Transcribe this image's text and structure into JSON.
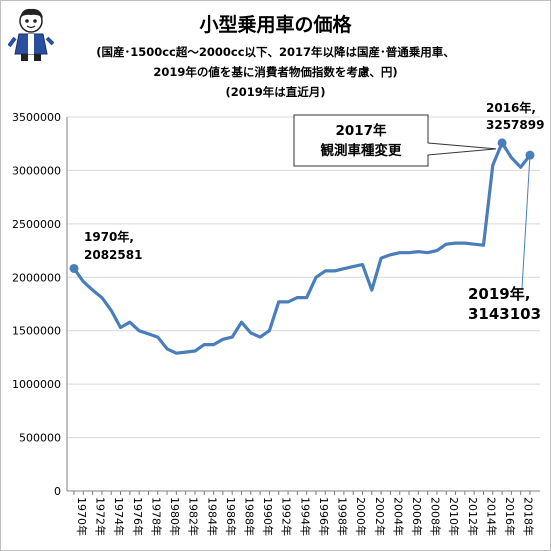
{
  "chart_data": {
    "type": "line",
    "title": "小型乗用車の価格",
    "subtitle_lines": [
      "(国産･1500cc超～2000cc以下、2017年以降は国産･普通乗用車、",
      "2019年の値を基に消費者物価指数を考慮、円)",
      "(2019年は直近月)"
    ],
    "ylim": [
      0,
      3500000
    ],
    "yticks": [
      0,
      500000,
      1000000,
      1500000,
      2000000,
      2500000,
      3000000,
      3500000
    ],
    "ytick_labels": [
      "0",
      "500000",
      "1000000",
      "1500000",
      "2000000",
      "2500000",
      "3000000",
      "3500000"
    ],
    "xtick_labels": [
      "1970年",
      "1972年",
      "1974年",
      "1976年",
      "1978年",
      "1980年",
      "1982年",
      "1984年",
      "1986年",
      "1988年",
      "1990年",
      "1992年",
      "1994年",
      "1996年",
      "1998年",
      "2000年",
      "2002年",
      "2004年",
      "2006年",
      "2008年",
      "2010年",
      "2012年",
      "2014年",
      "2016年",
      "2018年"
    ],
    "x": [
      1970,
      1971,
      1972,
      1973,
      1974,
      1975,
      1976,
      1977,
      1978,
      1979,
      1980,
      1981,
      1982,
      1983,
      1984,
      1985,
      1986,
      1987,
      1988,
      1989,
      1990,
      1991,
      1992,
      1993,
      1994,
      1995,
      1996,
      1997,
      1998,
      1999,
      2000,
      2001,
      2002,
      2003,
      2004,
      2005,
      2006,
      2007,
      2008,
      2009,
      2010,
      2011,
      2012,
      2013,
      2014,
      2015,
      2016,
      2017,
      2018,
      2019
    ],
    "series": [
      {
        "values": [
          2082581,
          1960000,
          1880000,
          1810000,
          1690000,
          1530000,
          1580000,
          1500000,
          1470000,
          1440000,
          1330000,
          1290000,
          1300000,
          1310000,
          1370000,
          1370000,
          1420000,
          1440000,
          1580000,
          1480000,
          1440000,
          1500000,
          1770000,
          1770000,
          1810000,
          1810000,
          2000000,
          2060000,
          2060000,
          2080000,
          2100000,
          2120000,
          1880000,
          2180000,
          2210000,
          2230000,
          2230000,
          2240000,
          2230000,
          2250000,
          2310000,
          2320000,
          2320000,
          2310000,
          2300000,
          3050000,
          3257899,
          3120000,
          3030000,
          3143103
        ],
        "color": "#4a7ebb"
      }
    ],
    "annotations": [
      {
        "line1": "1970年,",
        "line2": "2082581",
        "x": 1970,
        "y": 2082581
      },
      {
        "line1": "2016年,",
        "line2": "3257899",
        "x": 2016,
        "y": 3257899
      },
      {
        "line1": "2019年,",
        "line2": "3143103",
        "x": 2019,
        "y": 3143103
      }
    ],
    "callout": {
      "line1": "2017年",
      "line2": "観測車種変更"
    },
    "grid": true
  }
}
